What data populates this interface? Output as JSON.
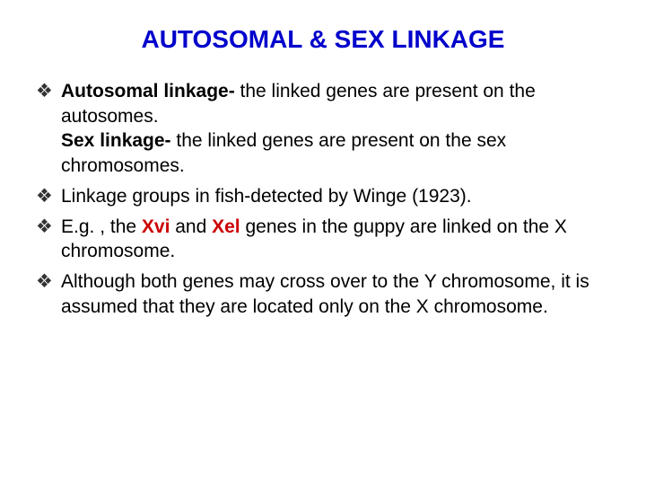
{
  "title": {
    "text": "AUTOSOMAL & SEX LINKAGE",
    "color": "#0000cc",
    "fontsize": 28
  },
  "body_fontsize": 21,
  "body_color": "#000000",
  "red_color": "#cc0000",
  "items": [
    {
      "parts": [
        {
          "kind": "bold",
          "text": "Autosomal linkage- "
        },
        {
          "kind": "plain",
          "text": "the linked genes are present on the autosomes."
        },
        {
          "kind": "br"
        },
        {
          "kind": "bold",
          "text": "Sex linkage- "
        },
        {
          "kind": "plain",
          "text": "the linked genes are present on the sex chromosomes."
        }
      ]
    },
    {
      "parts": [
        {
          "kind": "plain",
          "text": "Linkage groups in fish-detected by Winge (1923)."
        }
      ]
    },
    {
      "parts": [
        {
          "kind": "plain",
          "text": "E.g. , the "
        },
        {
          "kind": "red",
          "text": "Xvi "
        },
        {
          "kind": "plain",
          "text": "and "
        },
        {
          "kind": "red",
          "text": "Xel "
        },
        {
          "kind": "plain",
          "text": "genes in the guppy are linked on the X chromosome."
        }
      ]
    },
    {
      "parts": [
        {
          "kind": "plain",
          "text": "Although both genes may cross over to the Y chromosome, it is assumed that they are located only on the X chromosome."
        }
      ]
    }
  ]
}
